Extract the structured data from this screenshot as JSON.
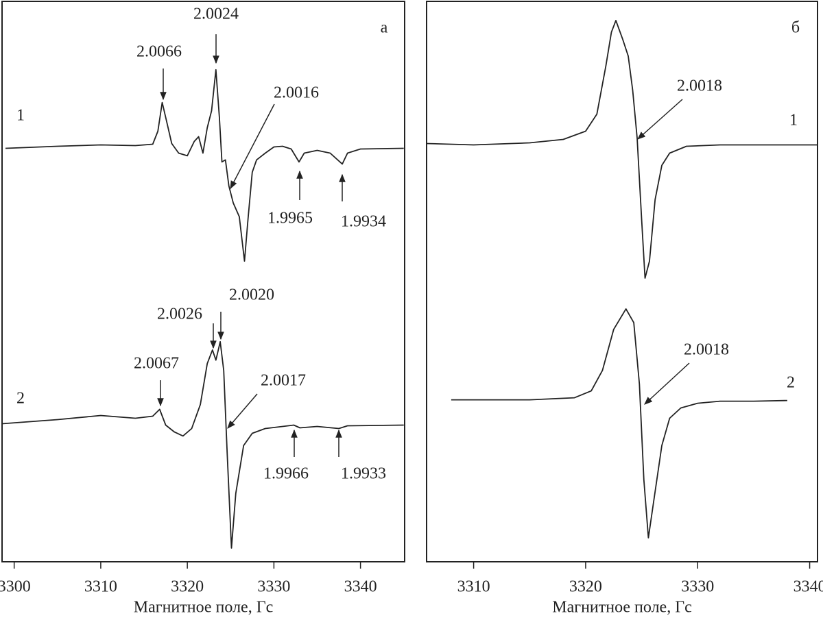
{
  "chart_data": [
    {
      "type": "line",
      "panel_label": "а",
      "xlabel": "Магнитное поле, Гс",
      "xlim": [
        3298.6,
        3345.1
      ],
      "xticks": [
        3300,
        3310,
        3320,
        3330,
        3340
      ],
      "ylim": [
        820,
        0
      ],
      "series": [
        {
          "name": "1",
          "color": "#222222",
          "x": [
            3299,
            3305,
            3310,
            3314,
            3316,
            3316.6,
            3317.1,
            3317.6,
            3318.2,
            3319,
            3320,
            3320.8,
            3321.3,
            3321.8,
            3322.3,
            3322.8,
            3323.3,
            3323.7,
            3324,
            3324.4,
            3324.8,
            3325.3,
            3326,
            3326.6,
            3327,
            3327.5,
            3328,
            3329,
            3330,
            3331,
            3332,
            3332.9,
            3333.5,
            3335,
            3336.5,
            3337.9,
            3338.5,
            3340,
            3345
          ],
          "values": [
            215,
            212,
            210,
            211,
            209,
            190,
            148,
            175,
            208,
            222,
            226,
            205,
            198,
            222,
            185,
            160,
            100,
            170,
            235,
            232,
            270,
            295,
            315,
            380,
            320,
            250,
            232,
            222,
            213,
            212,
            216,
            235,
            222,
            218,
            222,
            238,
            222,
            216,
            215
          ]
        },
        {
          "name": "2",
          "color": "#222222",
          "x": [
            3298.6,
            3305,
            3310,
            3314,
            3316,
            3316.8,
            3317.5,
            3318.5,
            3319.5,
            3320.5,
            3321.5,
            3322.3,
            3322.9,
            3323.3,
            3323.8,
            3324.2,
            3324.6,
            3325.1,
            3325.6,
            3326.5,
            3327.5,
            3329,
            3331,
            3332.3,
            3333,
            3335,
            3337.5,
            3338.5,
            3345
          ],
          "values": [
            618,
            612,
            606,
            610,
            607,
            597,
            620,
            630,
            636,
            625,
            590,
            530,
            510,
            525,
            498,
            540,
            660,
            800,
            720,
            650,
            632,
            625,
            622,
            620,
            624,
            622,
            625,
            621,
            620
          ]
        }
      ],
      "annotations": [
        "2.0024",
        "2.0066",
        "2.0016",
        "1.9965",
        "1.9934",
        "2.0026",
        "2.0020",
        "2.0067",
        "2.0017",
        "1.9966",
        "1.9933"
      ]
    },
    {
      "type": "line",
      "panel_label": "б",
      "xlabel": "Магнитное поле, Гс",
      "xlim": [
        3305.8,
        3340.7
      ],
      "xticks": [
        3310,
        3320,
        3330,
        3340
      ],
      "ylim": [
        820,
        0
      ],
      "series": [
        {
          "name": "1",
          "color": "#222222",
          "x": [
            3305.8,
            3310,
            3315,
            3318,
            3320,
            3321,
            3321.8,
            3322.3,
            3322.7,
            3323.3,
            3323.8,
            3324.2,
            3324.6,
            3325,
            3325.3,
            3325.7,
            3326.2,
            3326.8,
            3327.5,
            3329,
            3332,
            3340.7
          ],
          "values": [
            208,
            210,
            207,
            202,
            190,
            165,
            95,
            45,
            28,
            55,
            80,
            130,
            200,
            320,
            405,
            380,
            290,
            240,
            222,
            212,
            210,
            210
          ]
        },
        {
          "name": "2",
          "color": "#222222",
          "x": [
            3308,
            3315,
            3319,
            3320.5,
            3321.5,
            3322.5,
            3323.6,
            3324.3,
            3324.8,
            3325.2,
            3325.6,
            3326,
            3326.8,
            3327.5,
            3328.5,
            3330,
            3332,
            3335,
            3338
          ],
          "values": [
            583,
            583,
            580,
            570,
            540,
            480,
            450,
            470,
            560,
            700,
            785,
            740,
            650,
            610,
            595,
            588,
            585,
            585,
            584
          ]
        }
      ],
      "annotations": [
        "2.0018",
        "2.0018"
      ]
    }
  ]
}
